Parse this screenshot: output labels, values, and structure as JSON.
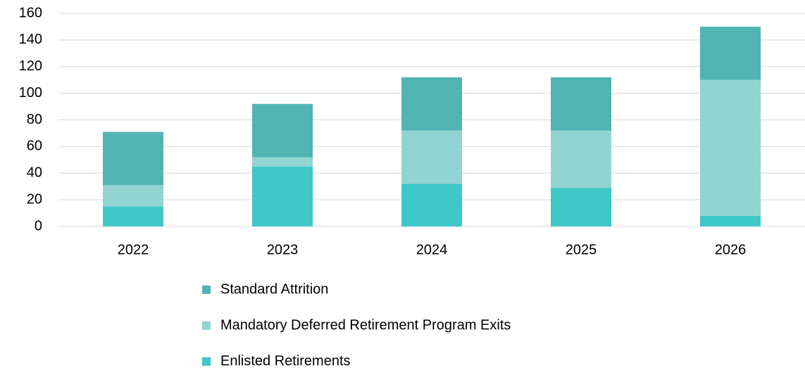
{
  "chart_data": {
    "type": "stacked_bar",
    "categories": [
      "2022",
      "2023",
      "2024",
      "2025",
      "2026"
    ],
    "series": [
      {
        "name": "Enlisted Retirements",
        "color": "#3ec8c8",
        "values": [
          15,
          45,
          32,
          29,
          8
        ]
      },
      {
        "name": "Mandatory Deferred Retirement Program Exits",
        "color": "#92d4d1",
        "values": [
          16,
          7,
          40,
          43,
          102
        ]
      },
      {
        "name": "Standard Attrition",
        "color": "#52b3b3",
        "values": [
          40,
          40,
          40,
          40,
          40
        ]
      }
    ],
    "ylim": [
      0,
      160
    ],
    "yticks": [
      0,
      20,
      40,
      60,
      80,
      100,
      120,
      140,
      160
    ],
    "grid": true,
    "legend": "bottom"
  }
}
